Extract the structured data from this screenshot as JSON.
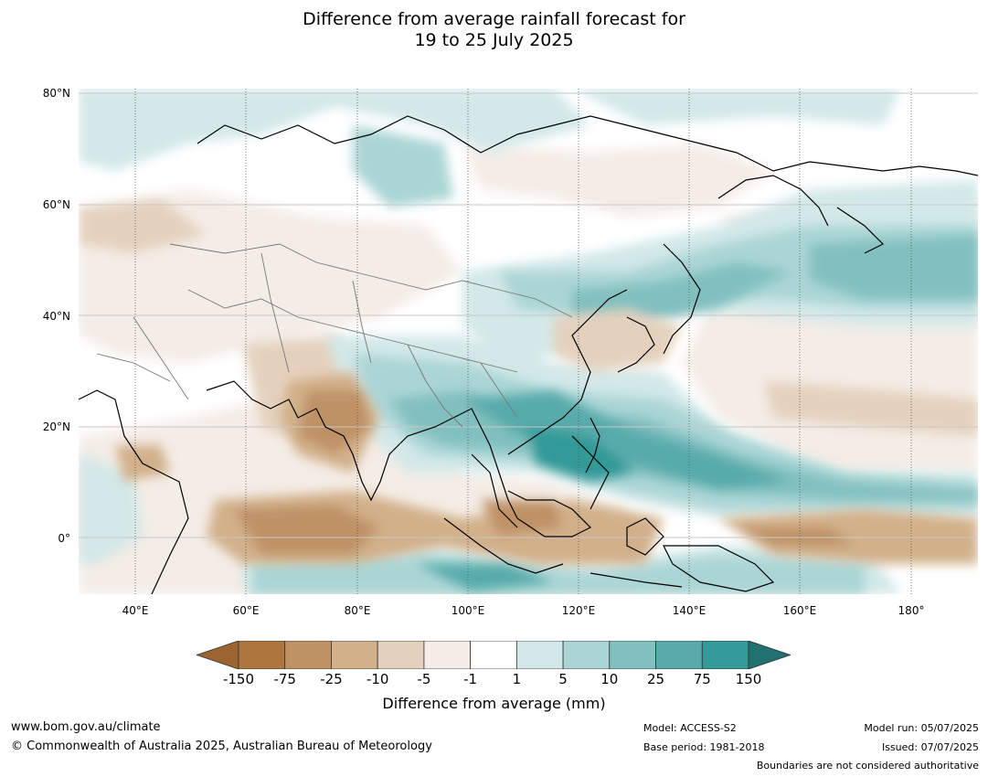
{
  "title_line1": "Difference from average rainfall forecast for",
  "title_line2": "19 to 25 July 2025",
  "lat_labels": [
    "80°N",
    "60°N",
    "40°N",
    "20°N",
    "0°"
  ],
  "lon_labels": [
    "40°E",
    "60°E",
    "80°E",
    "100°E",
    "120°E",
    "140°E",
    "160°E",
    "180°"
  ],
  "colorbar": {
    "label": "Difference from average (mm)",
    "ticks": [
      "-150",
      "-75",
      "-25",
      "-10",
      "-5",
      "-1",
      "1",
      "5",
      "10",
      "25",
      "75",
      "150"
    ],
    "colors": [
      "#9b6431",
      "#ad763f",
      "#bf9266",
      "#d2b08a",
      "#e4d1bd",
      "#f4ece6",
      "#ffffff",
      "#d3e8e8",
      "#abd5d5",
      "#82c0c0",
      "#59abab",
      "#339a98",
      "#22706f"
    ]
  },
  "footer": {
    "website": "www.bom.gov.au/climate",
    "copyright": "© Commonwealth of Australia 2025, Australian Bureau of Meteorology",
    "model": "Model: ACCESS-S2",
    "base_period": "Base period: 1981-2018",
    "model_run": "Model run: 05/07/2025",
    "issued": "Issued: 07/07/2025",
    "disclaimer": "Boundaries are not considered authoritative"
  }
}
